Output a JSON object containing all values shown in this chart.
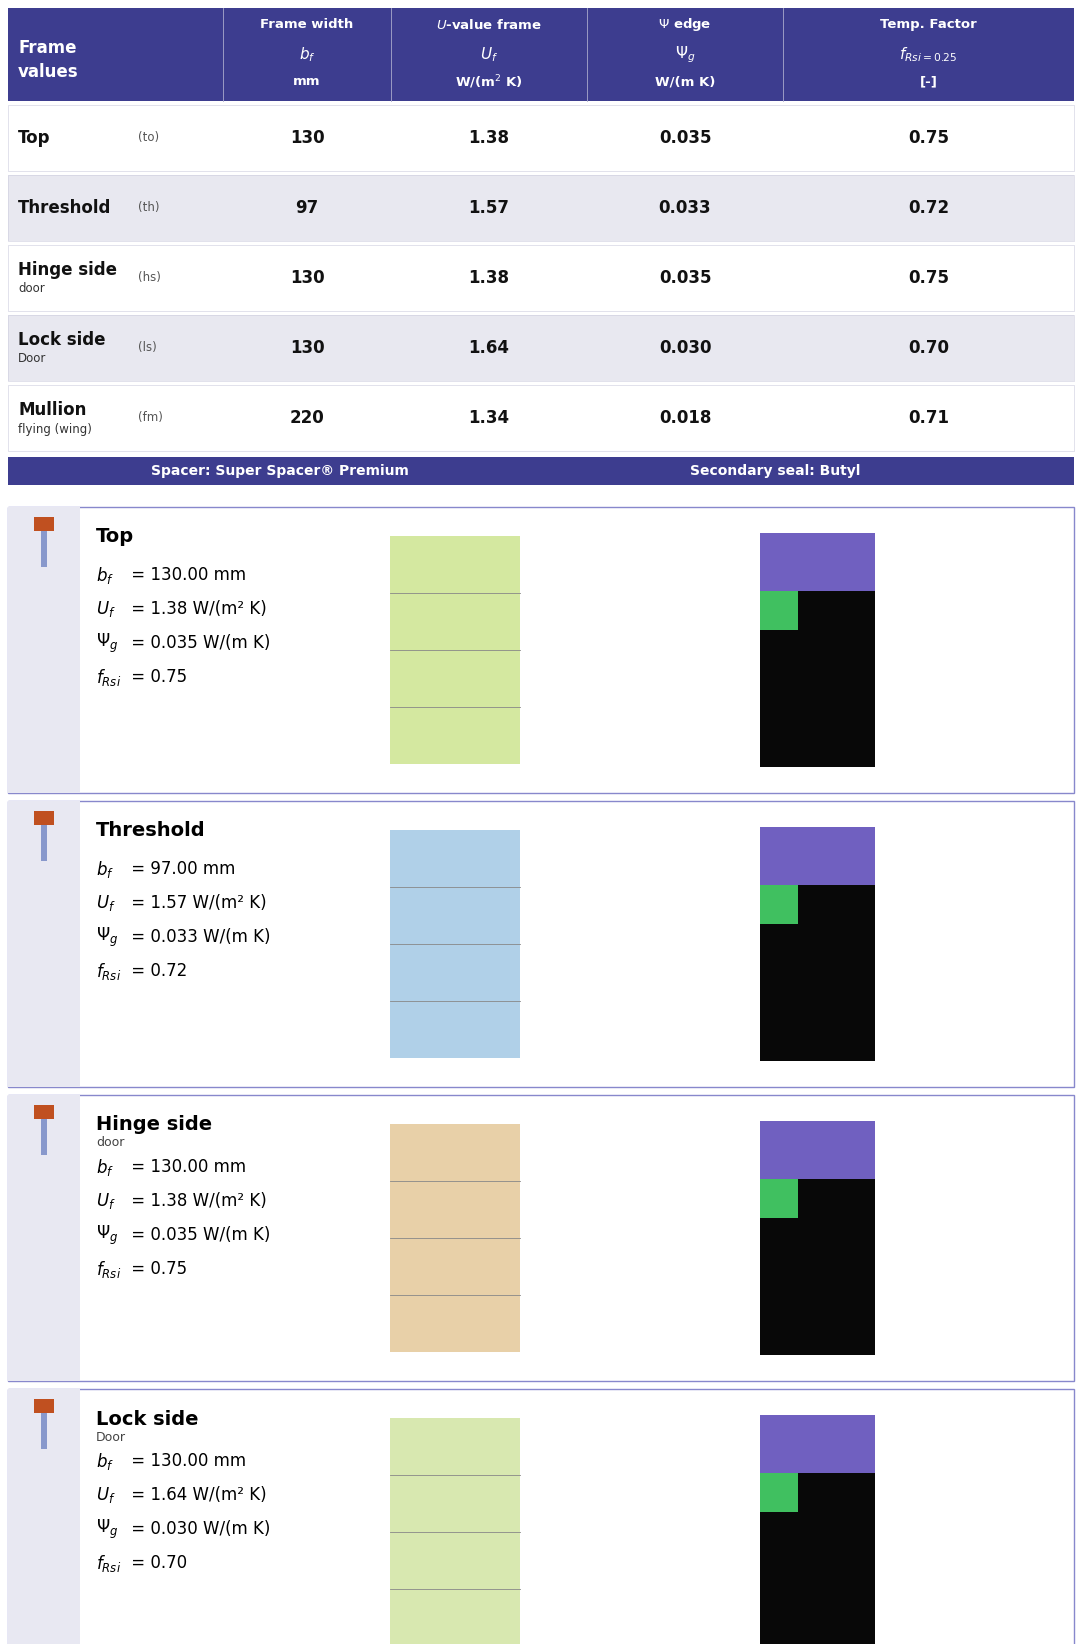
{
  "header_bg": "#3d3d8f",
  "header_text_color": "#ffffff",
  "row_bg_alt": "#e8e8f0",
  "row_bg_white": "#ffffff",
  "detail_border": "#8888cc",
  "spacer_bar_bg": "#3d3d8f",
  "spacer_bar_text": "#ffffff",
  "rows": [
    {
      "name": "Top",
      "abbr": "(to)",
      "sub": "",
      "bf": "130",
      "Uf": "1.38",
      "psi": "0.035",
      "fRsi": "0.75",
      "bg": "#ffffff"
    },
    {
      "name": "Threshold",
      "abbr": "(th)",
      "sub": "",
      "bf": "97",
      "Uf": "1.57",
      "psi": "0.033",
      "fRsi": "0.72",
      "bg": "#e8e8f0"
    },
    {
      "name": "Hinge side",
      "abbr": "(hs)",
      "sub": "door",
      "bf": "130",
      "Uf": "1.38",
      "psi": "0.035",
      "fRsi": "0.75",
      "bg": "#ffffff"
    },
    {
      "name": "Lock side",
      "abbr": "(ls)",
      "sub": "Door",
      "bf": "130",
      "Uf": "1.64",
      "psi": "0.030",
      "fRsi": "0.70",
      "bg": "#e8e8f0"
    },
    {
      "name": "Mullion",
      "abbr": "(fm)",
      "sub": "flying (wing)",
      "bf": "220",
      "Uf": "1.34",
      "psi": "0.018",
      "fRsi": "0.71",
      "bg": "#ffffff"
    }
  ],
  "spacer_left": "Spacer: Super Spacer® Premium",
  "spacer_right": "Secondary seal: Butyl",
  "details": [
    {
      "name": "Top",
      "sub": "",
      "bf": "130.00",
      "Uf": "1.38",
      "psi": "0.035",
      "fRsi": "0.75"
    },
    {
      "name": "Threshold",
      "sub": "",
      "bf": "97.00",
      "Uf": "1.57",
      "psi": "0.033",
      "fRsi": "0.72"
    },
    {
      "name": "Hinge side",
      "sub": "door",
      "bf": "130.00",
      "Uf": "1.38",
      "psi": "0.035",
      "fRsi": "0.75"
    },
    {
      "name": "Lock side",
      "sub": "Door",
      "bf": "130.00",
      "Uf": "1.64",
      "psi": "0.030",
      "fRsi": "0.70"
    }
  ],
  "img_colors_left": [
    "#c8e8a0",
    "#a0c8e8",
    "#e8c8a0",
    "#c8e0a8"
  ],
  "img_colors_right": [
    "#200020",
    "#180028",
    "#201820",
    "#201018"
  ]
}
